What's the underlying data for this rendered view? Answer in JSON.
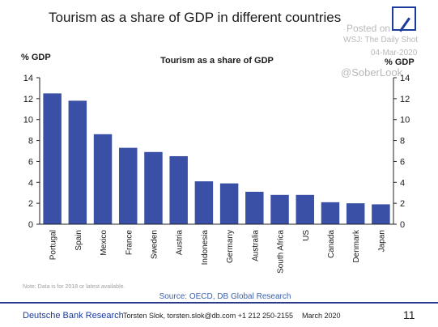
{
  "header": {
    "title": "Tourism as a share of GDP in different countries"
  },
  "watermark": {
    "posted": "Posted on",
    "source": "WSJ: The Daily Shot",
    "date": "04-Mar-2020",
    "handle": "@SoberLook"
  },
  "footer": {
    "brand": "Deutsche Bank Research",
    "contact": "Torsten Slok, torsten.slok@db.com  +1 212 250-2155",
    "date": "March 2020",
    "page_number": "11"
  },
  "colors": {
    "bar": "#3a4fa6",
    "logo": "#1a3a9c"
  },
  "chart_data": {
    "type": "bar",
    "title": "Tourism as a share of GDP",
    "ylabel_left": "% GDP",
    "ylabel_right": "% GDP",
    "ylim": [
      0,
      14
    ],
    "yticks": [
      0,
      2,
      4,
      6,
      8,
      10,
      12,
      14
    ],
    "grid": false,
    "categories": [
      "Portugal",
      "Spain",
      "Mexico",
      "France",
      "Sweden",
      "Austria",
      "Indonesia",
      "Germany",
      "Australia",
      "South Africa",
      "US",
      "Canada",
      "Denmark",
      "Japan"
    ],
    "values": [
      12.5,
      11.8,
      8.6,
      7.3,
      6.9,
      6.5,
      4.1,
      3.9,
      3.1,
      2.8,
      2.8,
      2.1,
      2.0,
      1.9
    ],
    "note": "Note: Data is for 2018 or latest available.",
    "source": "Source: OECD, DB Global Research"
  }
}
